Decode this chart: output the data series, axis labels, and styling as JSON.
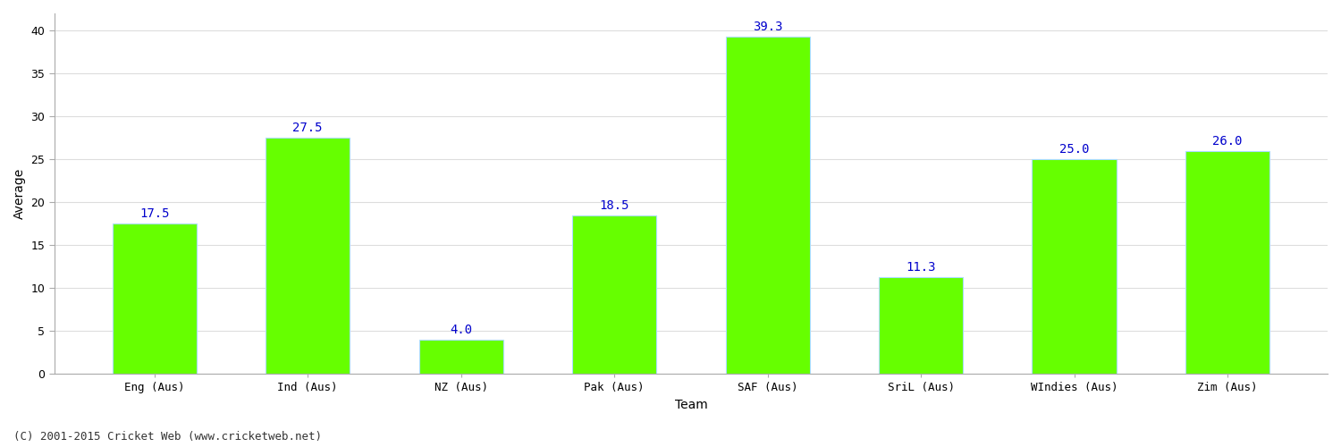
{
  "categories": [
    "Eng (Aus)",
    "Ind (Aus)",
    "NZ (Aus)",
    "Pak (Aus)",
    "SAF (Aus)",
    "SriL (Aus)",
    "WIndies (Aus)",
    "Zim (Aus)"
  ],
  "values": [
    17.5,
    27.5,
    4.0,
    18.5,
    39.3,
    11.3,
    25.0,
    26.0
  ],
  "bar_color": "#66ff00",
  "bar_edge_color": "#aaddff",
  "title": "",
  "xlabel": "Team",
  "ylabel": "Average",
  "ylim": [
    0,
    42
  ],
  "yticks": [
    0,
    5,
    10,
    15,
    20,
    25,
    30,
    35,
    40
  ],
  "annotation_color": "#0000cc",
  "annotation_fontsize": 10,
  "grid_color": "#dddddd",
  "background_color": "#ffffff",
  "footer_text": "(C) 2001-2015 Cricket Web (www.cricketweb.net)",
  "footer_fontsize": 9,
  "footer_color": "#333333",
  "axis_label_fontsize": 10,
  "tick_fontsize": 9,
  "bar_width": 0.55
}
